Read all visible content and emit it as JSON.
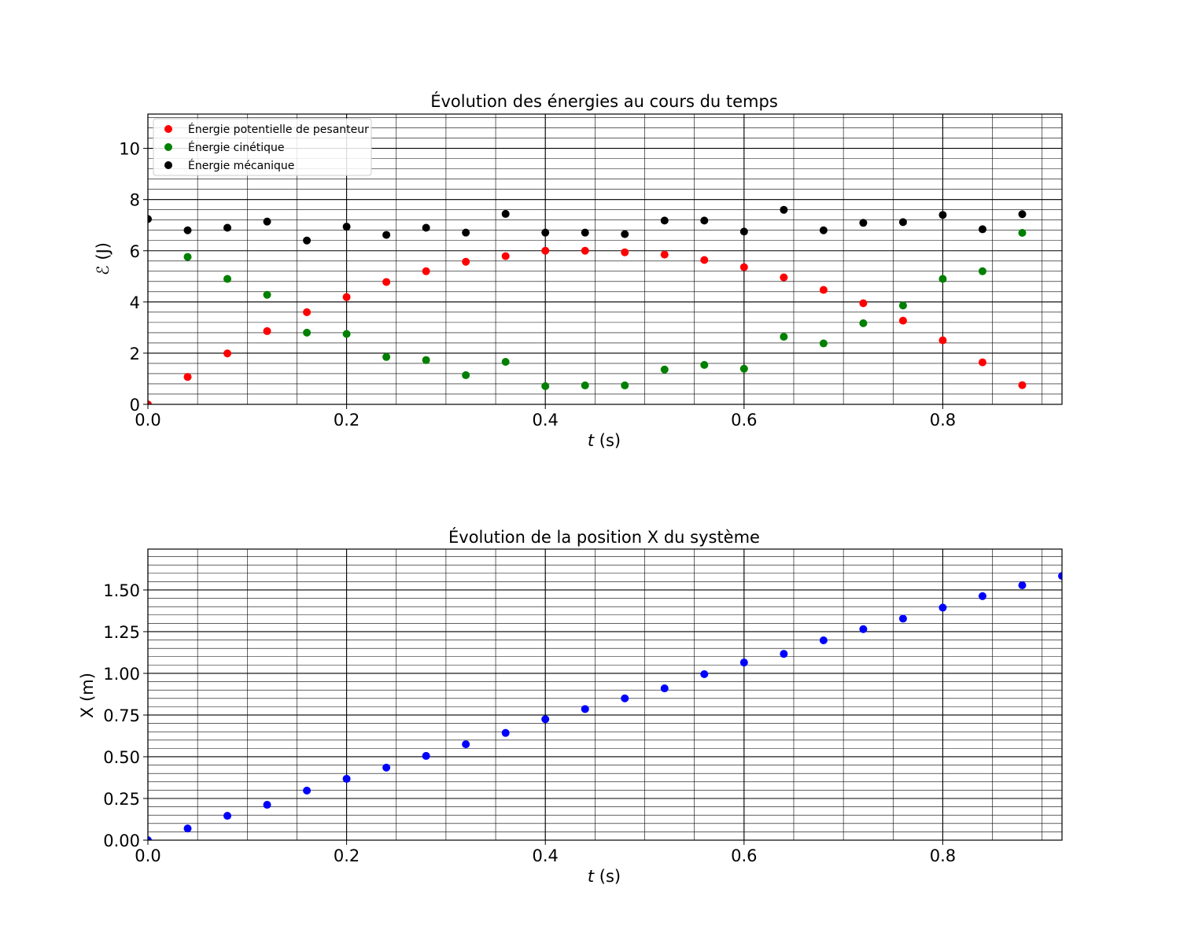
{
  "chart_data": [
    {
      "type": "scatter",
      "title": "Évolution des énergies au cours du temps",
      "xlabel": {
        "var": "t",
        "unit": " (s)"
      },
      "ylabel": {
        "var": "ℰ",
        "unit": " (J)"
      },
      "xlim": [
        0,
        0.92
      ],
      "ylim": [
        0,
        11.34
      ],
      "xticks": [
        0.0,
        0.2,
        0.4,
        0.6,
        0.8
      ],
      "xtick_labels": [
        "0.0",
        "0.2",
        "0.4",
        "0.6",
        "0.8"
      ],
      "yticks": [
        0,
        2,
        4,
        6,
        8,
        10
      ],
      "ytick_labels": [
        "0",
        "2",
        "4",
        "6",
        "8",
        "10"
      ],
      "grid": true,
      "legend": "upper-left",
      "series": [
        {
          "name": "Énergie potentielle de pesanteur",
          "color": "#ff0000",
          "x": [
            0.0,
            0.04,
            0.08,
            0.12,
            0.16,
            0.2,
            0.24,
            0.28,
            0.32,
            0.36,
            0.4,
            0.44,
            0.48,
            0.52,
            0.56,
            0.6,
            0.64,
            0.68,
            0.72,
            0.76,
            0.8,
            0.84,
            0.88
          ],
          "y": [
            0.0,
            1.07,
            1.99,
            2.86,
            3.6,
            4.19,
            4.78,
            5.2,
            5.57,
            5.79,
            6.0,
            6.0,
            5.94,
            5.85,
            5.64,
            5.36,
            4.96,
            4.47,
            3.95,
            3.27,
            2.5,
            1.64,
            0.75
          ]
        },
        {
          "name": "Énergie cinétique",
          "color": "#008000",
          "x": [
            0.04,
            0.08,
            0.12,
            0.16,
            0.2,
            0.24,
            0.28,
            0.32,
            0.36,
            0.4,
            0.44,
            0.48,
            0.52,
            0.56,
            0.6,
            0.64,
            0.68,
            0.72,
            0.76,
            0.8,
            0.84,
            0.88
          ],
          "y": [
            5.76,
            4.9,
            4.28,
            2.8,
            2.75,
            1.85,
            1.73,
            1.14,
            1.66,
            0.71,
            0.74,
            0.74,
            1.36,
            1.54,
            1.39,
            2.64,
            2.38,
            3.17,
            3.86,
            4.9,
            5.2,
            6.7
          ]
        },
        {
          "name": "Énergie mécanique",
          "color": "#000000",
          "x": [
            0.0,
            0.04,
            0.08,
            0.12,
            0.16,
            0.2,
            0.24,
            0.28,
            0.32,
            0.36,
            0.4,
            0.44,
            0.48,
            0.52,
            0.56,
            0.6,
            0.64,
            0.68,
            0.72,
            0.76,
            0.8,
            0.84,
            0.88
          ],
          "y": [
            7.24,
            6.8,
            6.9,
            7.14,
            6.4,
            6.94,
            6.62,
            6.9,
            6.71,
            7.44,
            6.71,
            6.71,
            6.65,
            7.18,
            7.18,
            6.75,
            7.6,
            6.8,
            7.09,
            7.12,
            7.4,
            6.84,
            7.43
          ]
        }
      ]
    },
    {
      "type": "scatter",
      "title": "Évolution de la position X du système",
      "xlabel": {
        "var": "t",
        "unit": " (s)"
      },
      "ylabel": {
        "var": "",
        "unit": "X (m)"
      },
      "xlim": [
        0,
        0.92
      ],
      "ylim": [
        0,
        1.745
      ],
      "xticks": [
        0.0,
        0.2,
        0.4,
        0.6,
        0.8
      ],
      "xtick_labels": [
        "0.0",
        "0.2",
        "0.4",
        "0.6",
        "0.8"
      ],
      "yticks": [
        0,
        0.25,
        0.5,
        0.75,
        1.0,
        1.25,
        1.5
      ],
      "ytick_labels": [
        "0.00",
        "0.25",
        "0.50",
        "0.75",
        "1.00",
        "1.25",
        "1.50"
      ],
      "grid": true,
      "legend": "none",
      "series": [
        {
          "color": "#0000ff",
          "x": [
            0.0,
            0.04,
            0.08,
            0.12,
            0.16,
            0.2,
            0.24,
            0.28,
            0.32,
            0.36,
            0.4,
            0.44,
            0.48,
            0.52,
            0.56,
            0.6,
            0.64,
            0.68,
            0.72,
            0.76,
            0.8,
            0.84,
            0.88,
            0.92
          ],
          "y": [
            0.0,
            0.07,
            0.146,
            0.212,
            0.297,
            0.368,
            0.435,
            0.505,
            0.575,
            0.643,
            0.725,
            0.786,
            0.85,
            0.91,
            0.995,
            1.065,
            1.117,
            1.198,
            1.265,
            1.328,
            1.394,
            1.463,
            1.528,
            1.584
          ]
        }
      ]
    }
  ]
}
